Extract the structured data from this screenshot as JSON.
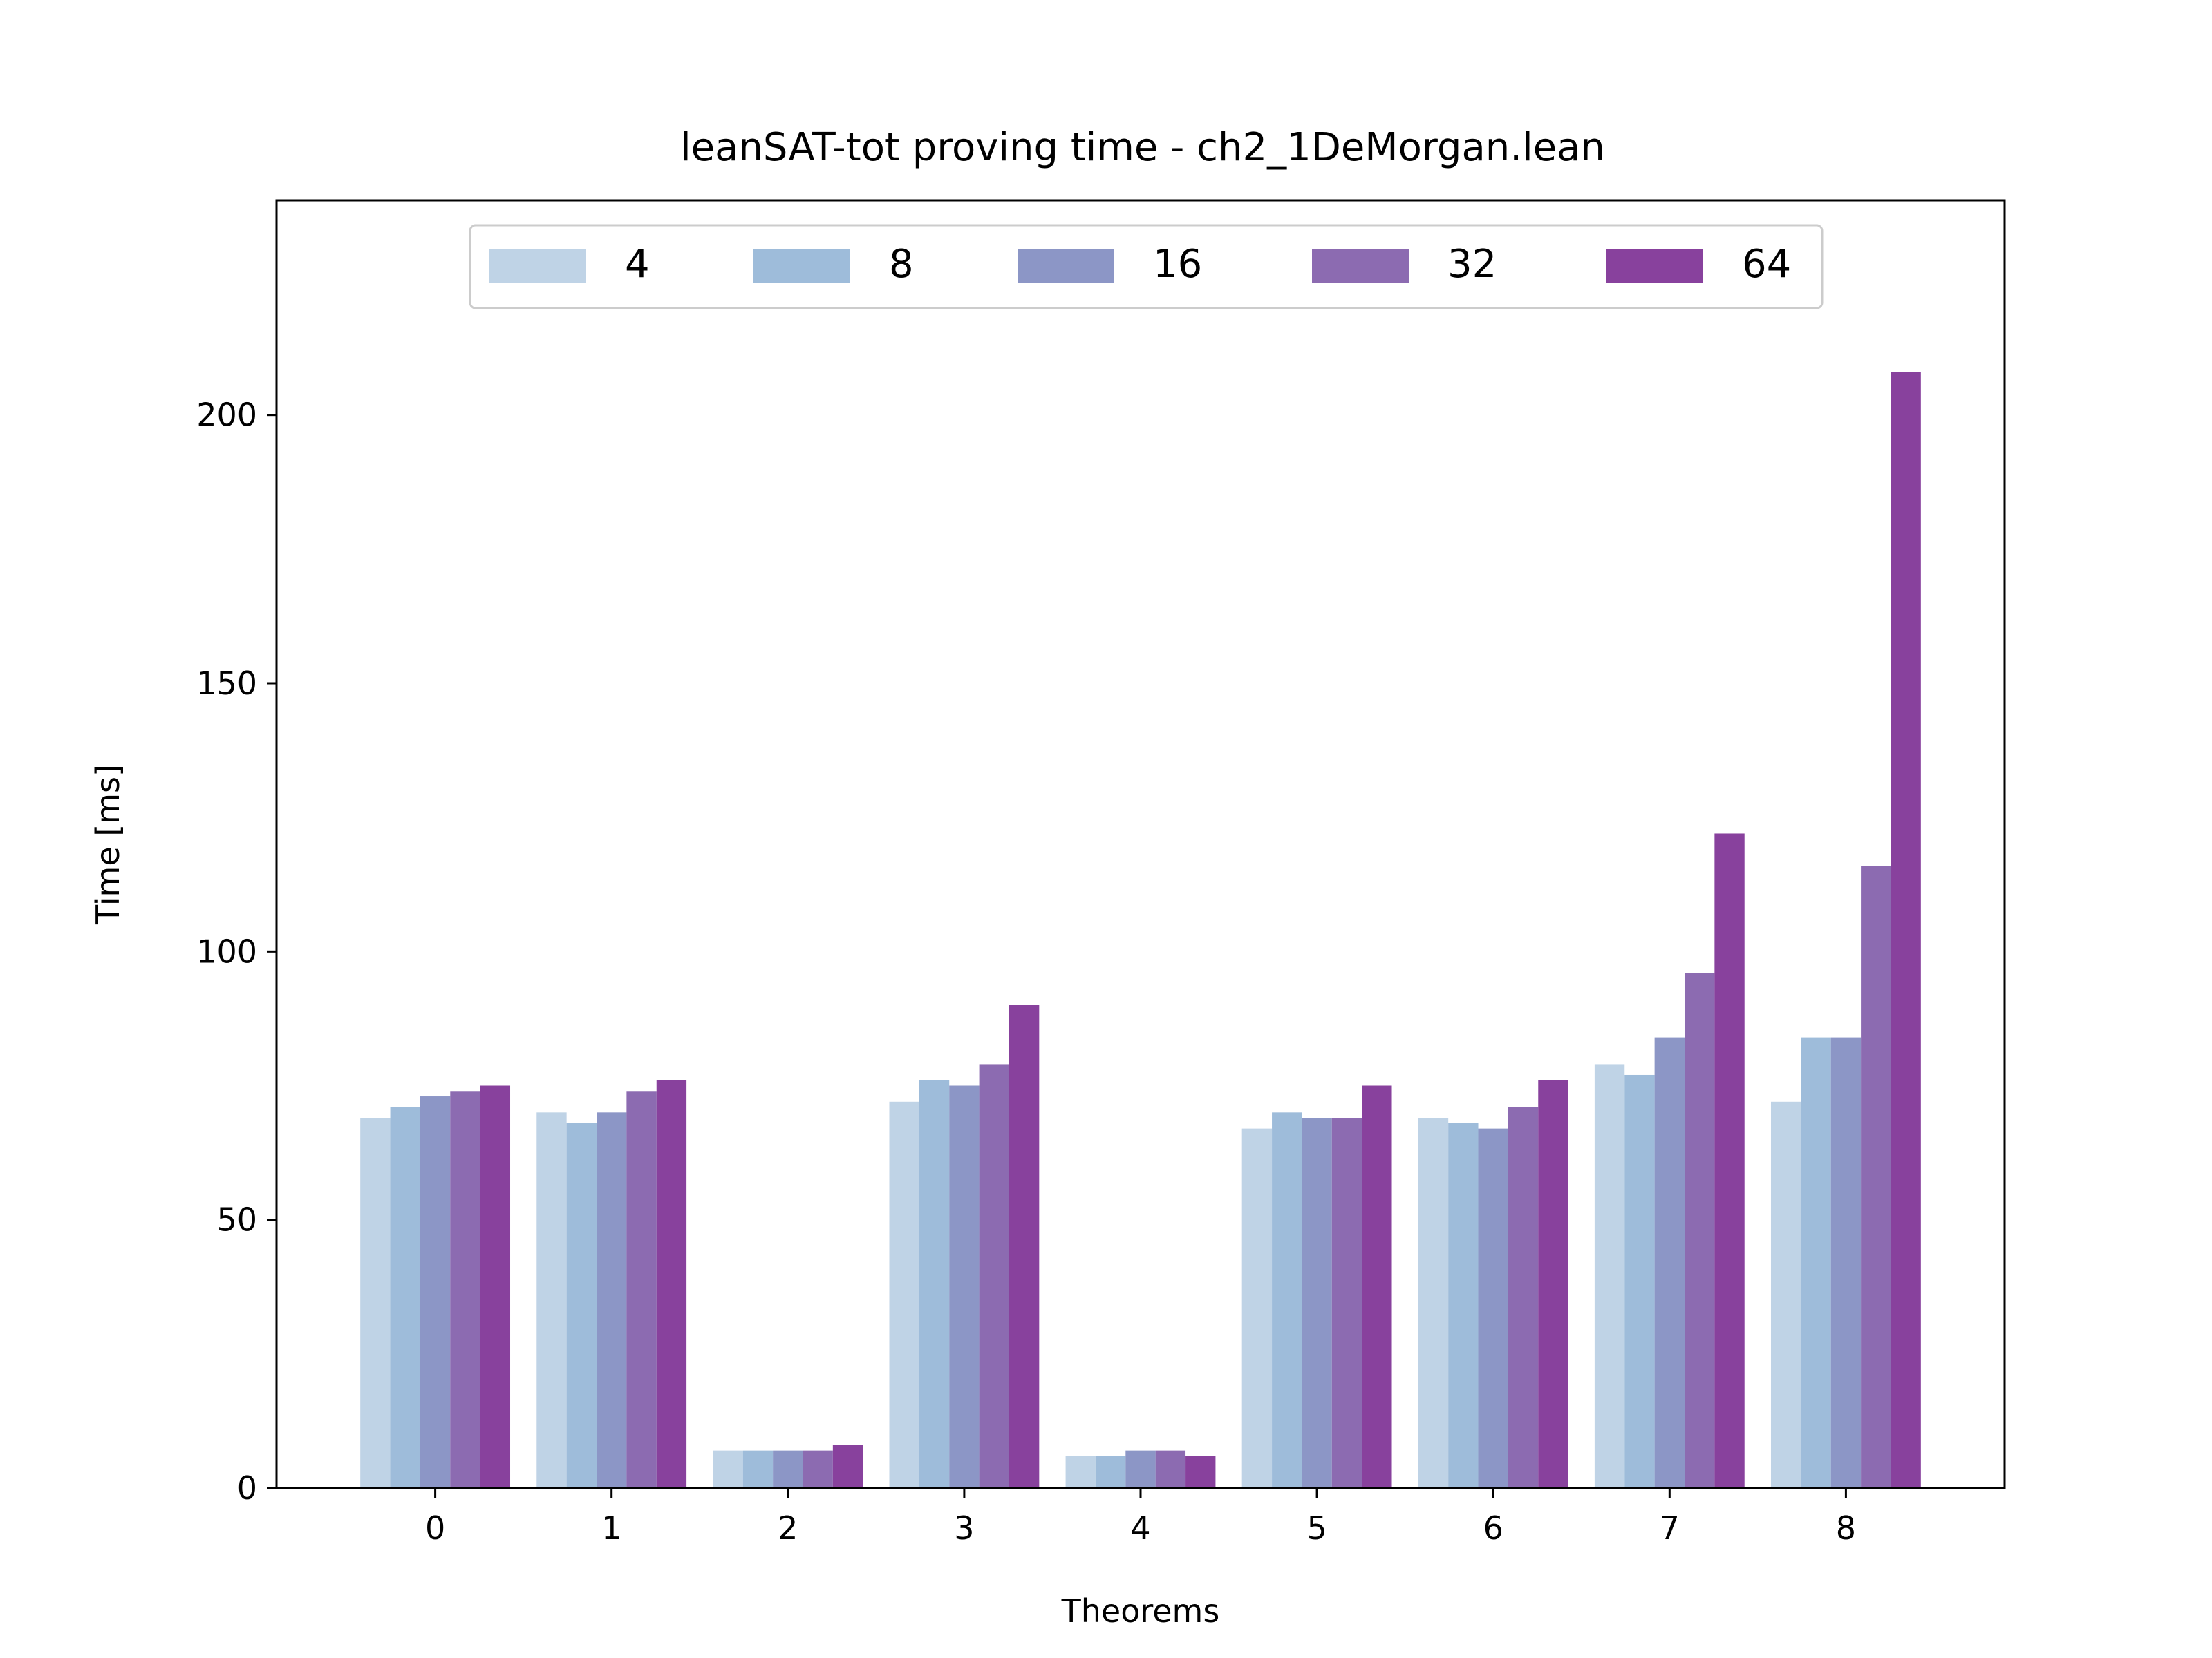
{
  "chart_data": {
    "type": "bar",
    "title": "leanSAT-tot proving time - ch2_1DeMorgan.lean",
    "xlabel": "Theorems",
    "ylabel": "Time [ms]",
    "ylim": [
      0,
      240
    ],
    "yticks": [
      0,
      50,
      100,
      150,
      200
    ],
    "categories": [
      "0",
      "1",
      "2",
      "3",
      "4",
      "5",
      "6",
      "7",
      "8"
    ],
    "legend_position": "top-center",
    "grid": false,
    "series": [
      {
        "name": "4",
        "color": "#bfd3e6",
        "values": [
          69,
          70,
          7,
          72,
          6,
          67,
          69,
          79,
          72
        ]
      },
      {
        "name": "8",
        "color": "#9ebcda",
        "values": [
          71,
          68,
          7,
          76,
          6,
          70,
          68,
          77,
          84
        ]
      },
      {
        "name": "16",
        "color": "#8c96c6",
        "values": [
          73,
          70,
          7,
          75,
          7,
          69,
          67,
          84,
          84
        ]
      },
      {
        "name": "32",
        "color": "#8c6bb1",
        "values": [
          74,
          74,
          7,
          79,
          7,
          69,
          71,
          96,
          116
        ]
      },
      {
        "name": "64",
        "color": "#88419d",
        "values": [
          75,
          76,
          8,
          90,
          6,
          75,
          76,
          122,
          208
        ]
      }
    ]
  }
}
